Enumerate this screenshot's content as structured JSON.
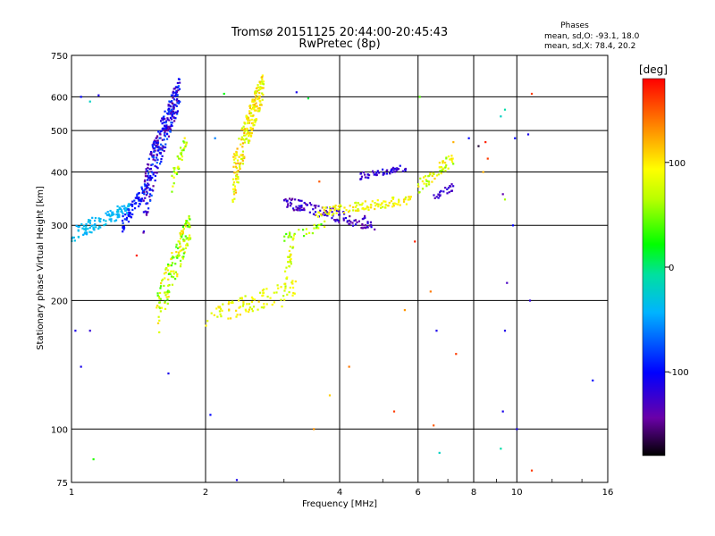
{
  "chart_data": {
    "type": "scatter",
    "title": "Tromsø 20151125 20:44:00-20:45:43",
    "subtitle": "RwPretec (8p)",
    "xlabel": "Frequency [MHz]",
    "ylabel": "Stationary phase Virtual Height [km]",
    "x_scale": "log",
    "y_scale": "log",
    "xlim": [
      1,
      16
    ],
    "ylim": [
      75,
      750
    ],
    "x_ticks": [
      1,
      2,
      4,
      6,
      8,
      10,
      16
    ],
    "y_ticks": [
      75,
      100,
      200,
      300,
      400,
      500,
      600,
      750
    ],
    "grid": true,
    "stats_header": "Phases",
    "stats_lines": [
      "mean, sd,O: -93.1, 18.0",
      "mean, sd,X:  78.4, 20.2"
    ],
    "colorbar": {
      "label": "[deg]",
      "min": -180,
      "max": 180,
      "ticks": [
        100,
        0,
        -100
      ],
      "colormap": "rainbow"
    },
    "clusters": [
      {
        "x_range": [
          1.0,
          1.35
        ],
        "h_start": 285,
        "h_end": 330,
        "phase": -40,
        "spread": 8,
        "n": 120
      },
      {
        "x_range": [
          1.3,
          1.45
        ],
        "h_start": 300,
        "h_end": 360,
        "phase": -95,
        "spread": 15,
        "n": 60
      },
      {
        "x_range": [
          1.45,
          1.75
        ],
        "h_start": 340,
        "h_end": 620,
        "phase": -110,
        "spread": 40,
        "n": 300
      },
      {
        "x_range": [
          1.68,
          1.82
        ],
        "h_start": 380,
        "h_end": 480,
        "phase": 70,
        "spread": 30,
        "n": 40
      },
      {
        "x_range": [
          2.3,
          2.7
        ],
        "h_start": 380,
        "h_end": 640,
        "phase": 95,
        "spread": 30,
        "n": 220
      },
      {
        "x_range": [
          1.55,
          1.85
        ],
        "h_start": 180,
        "h_end": 300,
        "phase": 70,
        "spread": 40,
        "n": 150
      },
      {
        "x_range": [
          2.0,
          3.2
        ],
        "h_start": 180,
        "h_end": 215,
        "phase": 90,
        "spread": 20,
        "n": 90
      },
      {
        "x_range": [
          2.95,
          3.15
        ],
        "h_start": 200,
        "h_end": 270,
        "phase": 80,
        "spread": 25,
        "n": 30
      },
      {
        "x_range": [
          3.0,
          4.8
        ],
        "h_start": 340,
        "h_end": 300,
        "phase": -130,
        "spread": 20,
        "n": 120
      },
      {
        "x_range": [
          3.5,
          5.8
        ],
        "h_start": 320,
        "h_end": 345,
        "phase": 90,
        "spread": 20,
        "n": 110
      },
      {
        "x_range": [
          4.4,
          5.7
        ],
        "h_start": 390,
        "h_end": 410,
        "phase": -120,
        "spread": 15,
        "n": 50
      },
      {
        "x_range": [
          6.0,
          7.2
        ],
        "h_start": 370,
        "h_end": 430,
        "phase": 80,
        "spread": 30,
        "n": 60
      },
      {
        "x_range": [
          6.5,
          7.2
        ],
        "h_start": 350,
        "h_end": 370,
        "phase": -125,
        "spread": 10,
        "n": 25
      },
      {
        "x_range": [
          3.0,
          3.7
        ],
        "h_start": 280,
        "h_end": 300,
        "phase": 60,
        "spread": 30,
        "n": 30
      }
    ],
    "scattered_points": [
      {
        "x": 1.05,
        "y": 600,
        "phase": -100
      },
      {
        "x": 1.1,
        "y": 585,
        "phase": -20
      },
      {
        "x": 1.15,
        "y": 605,
        "phase": -110
      },
      {
        "x": 1.02,
        "y": 170,
        "phase": -110
      },
      {
        "x": 1.1,
        "y": 170,
        "phase": -120
      },
      {
        "x": 1.05,
        "y": 140,
        "phase": -110
      },
      {
        "x": 1.12,
        "y": 85,
        "phase": 30
      },
      {
        "x": 1.4,
        "y": 255,
        "phase": 170
      },
      {
        "x": 1.65,
        "y": 135,
        "phase": -110
      },
      {
        "x": 2.05,
        "y": 108,
        "phase": -100
      },
      {
        "x": 2.2,
        "y": 610,
        "phase": 20
      },
      {
        "x": 2.1,
        "y": 480,
        "phase": -60
      },
      {
        "x": 2.35,
        "y": 76,
        "phase": -110
      },
      {
        "x": 3.2,
        "y": 615,
        "phase": -110
      },
      {
        "x": 3.4,
        "y": 595,
        "phase": 10
      },
      {
        "x": 3.5,
        "y": 100,
        "phase": 130
      },
      {
        "x": 3.6,
        "y": 380,
        "phase": 150
      },
      {
        "x": 3.8,
        "y": 120,
        "phase": 110
      },
      {
        "x": 4.2,
        "y": 140,
        "phase": 140
      },
      {
        "x": 5.3,
        "y": 110,
        "phase": 160
      },
      {
        "x": 5.6,
        "y": 190,
        "phase": 130
      },
      {
        "x": 5.9,
        "y": 275,
        "phase": 170
      },
      {
        "x": 6.05,
        "y": 600,
        "phase": 40
      },
      {
        "x": 6.4,
        "y": 210,
        "phase": 140
      },
      {
        "x": 6.5,
        "y": 102,
        "phase": 150
      },
      {
        "x": 6.6,
        "y": 170,
        "phase": -110
      },
      {
        "x": 6.7,
        "y": 88,
        "phase": -20
      },
      {
        "x": 7.2,
        "y": 470,
        "phase": 120
      },
      {
        "x": 7.3,
        "y": 150,
        "phase": 160
      },
      {
        "x": 7.8,
        "y": 480,
        "phase": -100
      },
      {
        "x": 8.2,
        "y": 460,
        "phase": -170
      },
      {
        "x": 8.5,
        "y": 470,
        "phase": 170
      },
      {
        "x": 8.4,
        "y": 400,
        "phase": 120
      },
      {
        "x": 8.6,
        "y": 430,
        "phase": 160
      },
      {
        "x": 9.2,
        "y": 540,
        "phase": -20
      },
      {
        "x": 9.4,
        "y": 560,
        "phase": -10
      },
      {
        "x": 9.3,
        "y": 355,
        "phase": -140
      },
      {
        "x": 9.4,
        "y": 345,
        "phase": 60
      },
      {
        "x": 9.5,
        "y": 220,
        "phase": -130
      },
      {
        "x": 9.4,
        "y": 170,
        "phase": -110
      },
      {
        "x": 9.3,
        "y": 110,
        "phase": -110
      },
      {
        "x": 9.2,
        "y": 90,
        "phase": -10
      },
      {
        "x": 9.8,
        "y": 300,
        "phase": -100
      },
      {
        "x": 9.9,
        "y": 480,
        "phase": -100
      },
      {
        "x": 10.0,
        "y": 100,
        "phase": -110
      },
      {
        "x": 10.6,
        "y": 490,
        "phase": -110
      },
      {
        "x": 10.8,
        "y": 610,
        "phase": 160
      },
      {
        "x": 10.8,
        "y": 80,
        "phase": 160
      },
      {
        "x": 10.7,
        "y": 200,
        "phase": -120
      },
      {
        "x": 14.8,
        "y": 130,
        "phase": -100
      }
    ]
  }
}
